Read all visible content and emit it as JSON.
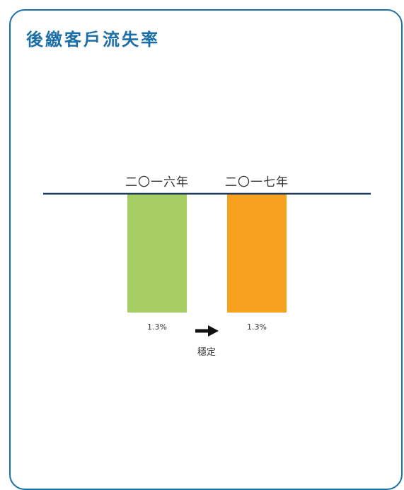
{
  "colors": {
    "border": "#1b6fa6",
    "title": "#1b6fa6",
    "baseline": "#1f3a5a",
    "bar_2016": "#a6ce62",
    "bar_2017": "#f7a11f",
    "arrow": "#111111",
    "label_text": "#333333",
    "value_text": "#333333"
  },
  "arrow_icon": "right-arrow-icon",
  "chart_data": {
    "type": "bar",
    "title": "後繳客戶流失率",
    "categories": [
      "二〇一六年",
      "二〇一七年"
    ],
    "values": [
      1.3,
      1.3
    ],
    "value_labels": [
      "1.3%",
      "1.3%"
    ],
    "unit": "%",
    "xlabel": "",
    "ylabel": "",
    "ylim": [
      0,
      1.3
    ],
    "grid": false,
    "legend": "none",
    "annotation": "穩定"
  }
}
